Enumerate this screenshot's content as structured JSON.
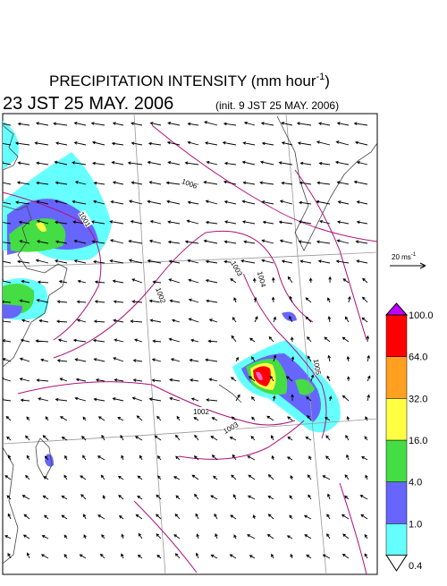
{
  "header": {
    "title": "PRECIPITATION INTENSITY (mm hour",
    "title_superscript": "-1",
    "title_close": ")",
    "valid_time": "23 JST 25 MAY. 2006",
    "init_time": "(init. 9 JST 25 MAY. 2006)"
  },
  "map": {
    "contour_labels": [
      "1006",
      "1001",
      "1002",
      "1003",
      "1004",
      "1005",
      "1002",
      "1003"
    ]
  },
  "wind_scale": {
    "label": "20 ms",
    "superscript": "-1"
  },
  "colorbar": {
    "levels": [
      "0.4",
      "1.0",
      "4.0",
      "16.0",
      "32.0",
      "64.0",
      "100.0"
    ],
    "colors": [
      "#66ffff",
      "#6666ff",
      "#44dd44",
      "#ffff44",
      "#ffa020",
      "#ff0000"
    ],
    "under_color": "#ffffff",
    "over_color": "#c000ff"
  }
}
